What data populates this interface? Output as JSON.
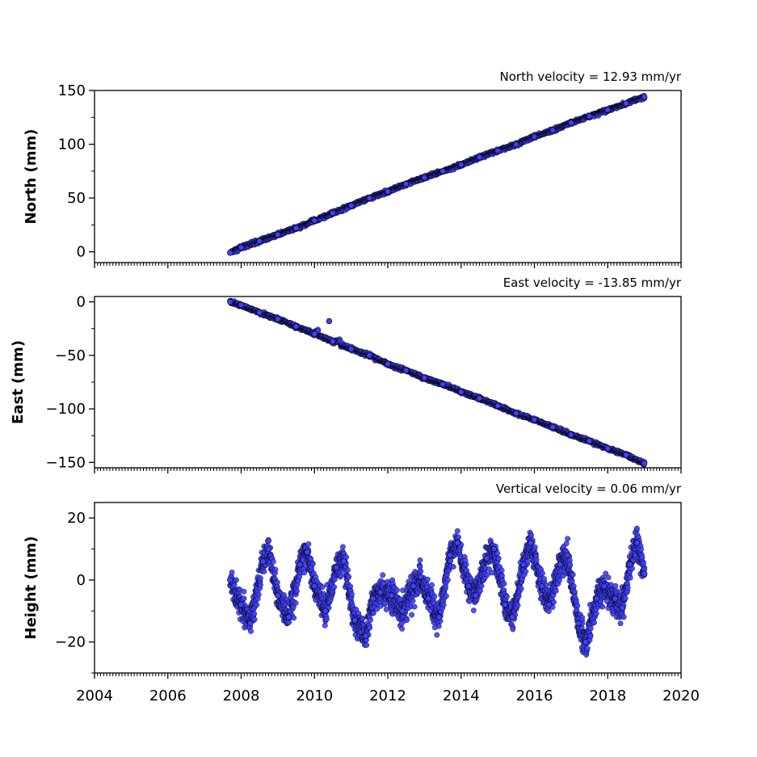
{
  "chart_data": [
    {
      "type": "scatter",
      "title": "North velocity = 12.93 mm/yr",
      "ylabel": "North (mm)",
      "xlim": [
        2004,
        2020
      ],
      "ylim": [
        -10,
        150
      ],
      "yticks": [
        0,
        50,
        100,
        150
      ],
      "ytick_labels": [
        "0",
        "50",
        "100",
        "150"
      ],
      "marker_color": "#4040ff",
      "edge_color": "#000000",
      "series": [
        {
          "x": [
            2007.7,
            2008.0,
            2008.5,
            2009.0,
            2009.5,
            2010.0,
            2010.5,
            2011.0,
            2011.5,
            2012.0,
            2012.5,
            2013.0,
            2013.5,
            2014.0,
            2014.5,
            2015.0,
            2015.5,
            2016.0,
            2016.5,
            2017.0,
            2017.5,
            2018.0,
            2018.5,
            2019.0
          ],
          "y": [
            -1,
            4,
            10,
            16,
            22,
            29,
            36,
            43,
            50,
            56,
            63,
            69,
            75,
            81,
            88,
            94,
            100,
            107,
            113,
            120,
            126,
            132,
            138,
            144
          ]
        }
      ]
    },
    {
      "type": "scatter",
      "title": "East velocity = -13.85 mm/yr",
      "ylabel": "East (mm)",
      "xlim": [
        2004,
        2020
      ],
      "ylim": [
        -155,
        5
      ],
      "yticks": [
        0,
        -50,
        -100,
        -150
      ],
      "ytick_labels": [
        "0",
        "−50",
        "−100",
        "−150"
      ],
      "marker_color": "#4040ff",
      "edge_color": "#000000",
      "series": [
        {
          "x": [
            2007.7,
            2008.0,
            2008.5,
            2009.0,
            2009.5,
            2010.0,
            2010.4,
            2010.5,
            2011.0,
            2011.5,
            2012.0,
            2012.5,
            2013.0,
            2013.5,
            2014.0,
            2014.5,
            2015.0,
            2015.5,
            2016.0,
            2016.5,
            2017.0,
            2017.5,
            2018.0,
            2018.5,
            2019.0
          ],
          "y": [
            0,
            -3,
            -10,
            -16,
            -23,
            -30,
            -18,
            -37,
            -44,
            -50,
            -58,
            -64,
            -71,
            -77,
            -84,
            -90,
            -97,
            -104,
            -110,
            -117,
            -124,
            -130,
            -137,
            -143,
            -151
          ]
        }
      ]
    },
    {
      "type": "scatter",
      "title": "Vertical velocity = 0.06 mm/yr",
      "ylabel": "Height (mm)",
      "xlim": [
        2004,
        2020
      ],
      "ylim": [
        -30,
        25
      ],
      "yticks": [
        -20,
        0,
        20
      ],
      "ytick_labels": [
        "−20",
        "0",
        "20"
      ],
      "xticks": [
        2004,
        2006,
        2008,
        2010,
        2012,
        2014,
        2016,
        2018,
        2020
      ],
      "xtick_labels": [
        "2004",
        "2006",
        "2008",
        "2010",
        "2012",
        "2014",
        "2016",
        "2018",
        "2020"
      ],
      "marker_color": "#4040ff",
      "edge_color": "#000000",
      "series": [
        {
          "x": [
            2007.7,
            2008.0,
            2008.25,
            2008.6,
            2008.75,
            2009.0,
            2009.3,
            2009.6,
            2009.8,
            2010.0,
            2010.3,
            2010.6,
            2010.8,
            2011.1,
            2011.4,
            2011.6,
            2011.8,
            2012.1,
            2012.4,
            2012.7,
            2012.9,
            2013.1,
            2013.4,
            2013.7,
            2013.9,
            2014.2,
            2014.4,
            2014.7,
            2014.9,
            2015.2,
            2015.4,
            2015.7,
            2015.9,
            2016.2,
            2016.4,
            2016.7,
            2016.9,
            2017.2,
            2017.4,
            2017.7,
            2017.9,
            2018.2,
            2018.4,
            2018.6,
            2018.8,
            2019.0
          ],
          "y": [
            0,
            -8,
            -14,
            6,
            10,
            -5,
            -12,
            5,
            9,
            -2,
            -10,
            4,
            6,
            -13,
            -18,
            -6,
            -4,
            -5,
            -10,
            -2,
            1,
            -6,
            -12,
            8,
            12,
            -2,
            -5,
            7,
            10,
            -8,
            -12,
            5,
            12,
            -2,
            -8,
            5,
            8,
            -14,
            -20,
            -6,
            -2,
            -6,
            -9,
            5,
            12,
            2
          ]
        }
      ]
    }
  ]
}
